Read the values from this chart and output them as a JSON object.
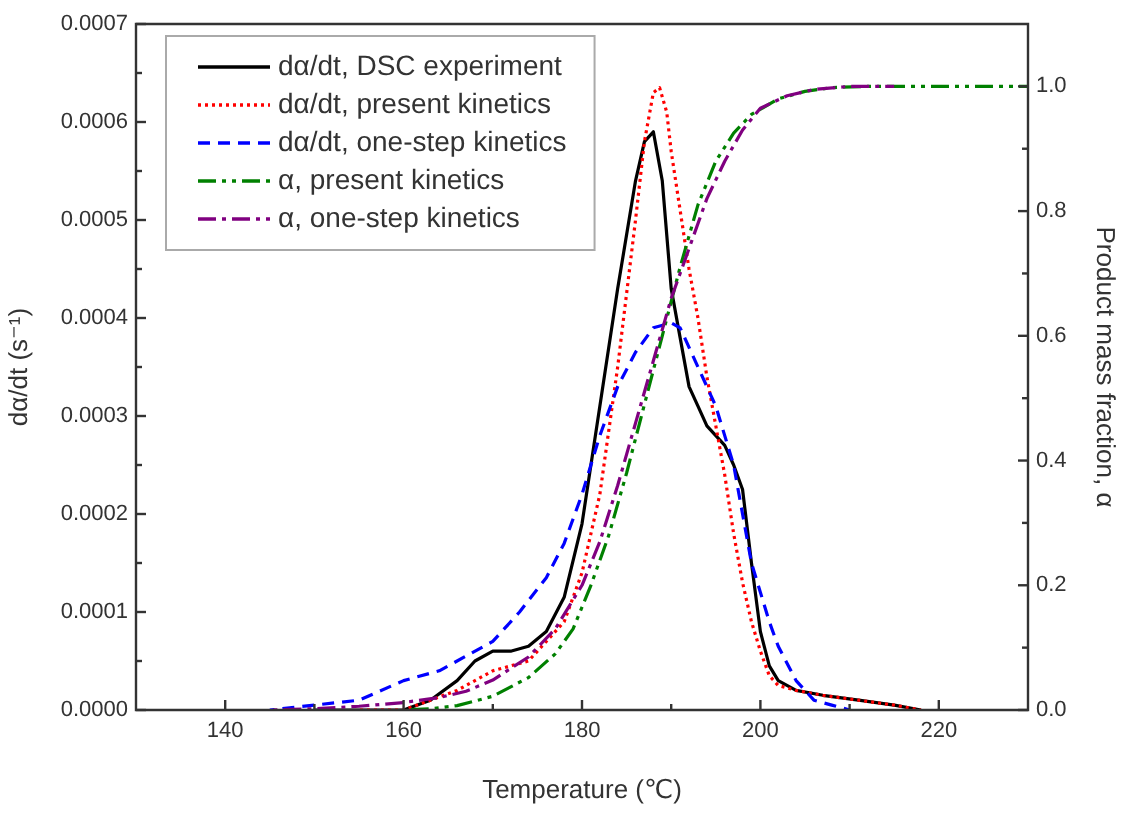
{
  "chart_data": {
    "type": "line",
    "xlabel": "Temperature (℃)",
    "ylabel": "dα/dt (s⁻¹)",
    "y2label": "Product mass fraction, α",
    "xlim": [
      130,
      230
    ],
    "xticks": [
      140,
      {
        "value": 150,
        "label": null
      },
      160,
      {
        "value": 170,
        "label": null
      },
      180,
      {
        "value": 190,
        "label": null
      },
      200,
      {
        "value": 210,
        "label": null
      },
      220
    ],
    "ylim": [
      0,
      0.0007
    ],
    "yticks": [
      {
        "value": 0,
        "label": "0.0000"
      },
      {
        "value": 5e-05,
        "label": null
      },
      {
        "value": 0.0001,
        "label": "0.0001"
      },
      {
        "value": 0.00015,
        "label": null
      },
      {
        "value": 0.0002,
        "label": "0.0002"
      },
      {
        "value": 0.00025,
        "label": null
      },
      {
        "value": 0.0003,
        "label": "0.0003"
      },
      {
        "value": 0.00035,
        "label": null
      },
      {
        "value": 0.0004,
        "label": "0.0004"
      },
      {
        "value": 0.00045,
        "label": null
      },
      {
        "value": 0.0005,
        "label": "0.0005"
      },
      {
        "value": 0.00055,
        "label": null
      },
      {
        "value": 0.0006,
        "label": "0.0006"
      },
      {
        "value": 0.00065,
        "label": null
      },
      {
        "value": 0.0007,
        "label": "0.0007"
      }
    ],
    "y2lim": [
      0,
      1.1
    ],
    "y2ticks": [
      {
        "value": 0,
        "label": "0.0"
      },
      {
        "value": 0.1,
        "label": null
      },
      {
        "value": 0.2,
        "label": "0.2"
      },
      {
        "value": 0.3,
        "label": null
      },
      {
        "value": 0.4,
        "label": "0.4"
      },
      {
        "value": 0.5,
        "label": null
      },
      {
        "value": 0.6,
        "label": "0.6"
      },
      {
        "value": 0.7,
        "label": null
      },
      {
        "value": 0.8,
        "label": "0.8"
      },
      {
        "value": 0.9,
        "label": null
      },
      {
        "value": 1,
        "label": "1.0"
      }
    ],
    "legend": "top left",
    "series": [
      {
        "name": "dα/dt, DSC experiment",
        "color": "#000000",
        "line_style": "solid",
        "x": [
          150,
          155,
          160,
          163,
          166,
          168,
          170,
          172,
          174,
          176,
          178,
          180,
          182,
          184,
          186,
          187,
          188,
          189,
          190,
          191,
          192,
          193,
          194,
          195,
          196,
          197,
          198,
          199,
          200,
          201,
          202,
          204,
          207,
          211,
          215,
          218
        ],
        "values": [
          0,
          0,
          0,
          1e-05,
          3e-05,
          5e-05,
          6e-05,
          6e-05,
          6.5e-05,
          8e-05,
          0.000115,
          0.00019,
          0.00031,
          0.00043,
          0.00054,
          0.00058,
          0.00059,
          0.00054,
          0.00043,
          0.00038,
          0.00033,
          0.00031,
          0.00029,
          0.00028,
          0.00027,
          0.00025,
          0.000225,
          0.00015,
          8e-05,
          4.5e-05,
          3e-05,
          2e-05,
          1.5e-05,
          1e-05,
          5e-06,
          0
        ]
      },
      {
        "name": "dα/dt, present kinetics",
        "color": "#ff0000",
        "line_style": "dotted",
        "x": [
          155,
          160,
          163,
          166,
          168,
          170,
          172,
          174,
          176,
          178,
          180,
          182,
          184,
          186,
          187,
          188,
          188.7,
          189.5,
          190,
          191,
          192,
          193,
          194,
          195,
          196,
          197,
          198,
          199,
          200,
          201,
          202,
          204,
          207,
          211,
          215,
          218
        ],
        "values": [
          0,
          0,
          1e-05,
          2e-05,
          3e-05,
          4e-05,
          4.5e-05,
          5e-05,
          7e-05,
          9e-05,
          0.00014,
          0.00022,
          0.00035,
          0.0005,
          0.00058,
          0.00063,
          0.000635,
          0.00061,
          0.00057,
          0.00051,
          0.00045,
          0.0004,
          0.00034,
          0.00029,
          0.00024,
          0.00018,
          0.00013,
          9e-05,
          6e-05,
          3.5e-05,
          2.5e-05,
          2e-05,
          1.5e-05,
          1e-05,
          5e-06,
          0
        ]
      },
      {
        "name": "dα/dt, one-step kinetics",
        "color": "#0000ff",
        "line_style": "dashed",
        "x": [
          145,
          150,
          155,
          160,
          164,
          167,
          170,
          173,
          176,
          178,
          180,
          182,
          184,
          186,
          188,
          190,
          191,
          192,
          193,
          194,
          195,
          196,
          197,
          198,
          199,
          200,
          201,
          202,
          204,
          206,
          208,
          210
        ],
        "values": [
          0,
          5e-06,
          1e-05,
          3e-05,
          4e-05,
          5.5e-05,
          7e-05,
          0.0001,
          0.000135,
          0.00017,
          0.00022,
          0.00028,
          0.00033,
          0.000365,
          0.00039,
          0.000395,
          0.00039,
          0.00037,
          0.00035,
          0.00033,
          0.00031,
          0.00028,
          0.00025,
          0.0002,
          0.00015,
          0.00012,
          9e-05,
          6.5e-05,
          3e-05,
          1e-05,
          5e-06,
          0
        ]
      },
      {
        "name": "α, present kinetics",
        "color": "#008000",
        "line_style": "dashdotdot",
        "axis": "y2",
        "x": [
          160,
          163,
          166,
          170,
          174,
          177,
          179,
          181,
          183,
          185,
          187,
          189,
          191,
          193,
          195,
          197,
          199,
          202,
          205,
          208,
          212,
          230
        ],
        "values": [
          0,
          0.002,
          0.007,
          0.022,
          0.052,
          0.09,
          0.13,
          0.2,
          0.28,
          0.38,
          0.49,
          0.6,
          0.71,
          0.81,
          0.88,
          0.925,
          0.955,
          0.98,
          0.992,
          0.998,
          1,
          1
        ]
      },
      {
        "name": "α, one-step kinetics",
        "color": "#800080",
        "line_style": "dashdot",
        "axis": "y2",
        "x": [
          145,
          150,
          155,
          160,
          164,
          167,
          170,
          174,
          177,
          180,
          182,
          184,
          186,
          188,
          190,
          192,
          194,
          196,
          198,
          200,
          203,
          206,
          210,
          215
        ],
        "values": [
          0,
          0.002,
          0.006,
          0.012,
          0.02,
          0.03,
          0.048,
          0.085,
          0.13,
          0.2,
          0.27,
          0.36,
          0.46,
          0.56,
          0.66,
          0.74,
          0.82,
          0.88,
          0.93,
          0.965,
          0.985,
          0.995,
          1,
          1
        ]
      }
    ]
  }
}
